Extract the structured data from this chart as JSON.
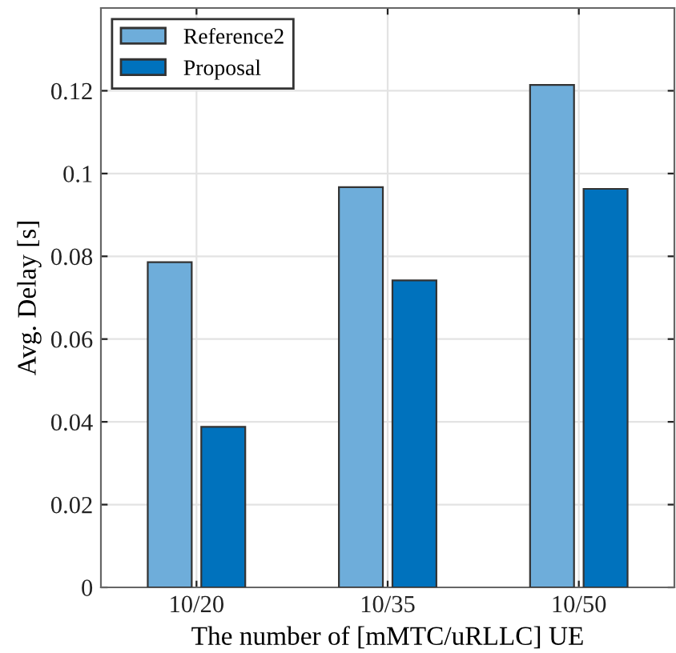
{
  "chart_data": {
    "type": "bar",
    "xlabel": "The number of [mMTC/uRLLC] UE",
    "ylabel": "Avg. Delay [s]",
    "categories": [
      "10/20",
      "10/35",
      "10/50"
    ],
    "series": [
      {
        "name": "Reference2",
        "color": "#6eadda",
        "values": [
          0.0786,
          0.0967,
          0.1214
        ]
      },
      {
        "name": "Proposal",
        "color": "#0072bd",
        "values": [
          0.0388,
          0.0742,
          0.0963
        ]
      }
    ],
    "ylim": [
      0,
      0.14
    ],
    "yticks": [
      0,
      0.02,
      0.04,
      0.06,
      0.08,
      {
        "value": 0.1,
        "label": "0.1"
      },
      0.12
    ],
    "grid": true,
    "legend": "top left"
  }
}
